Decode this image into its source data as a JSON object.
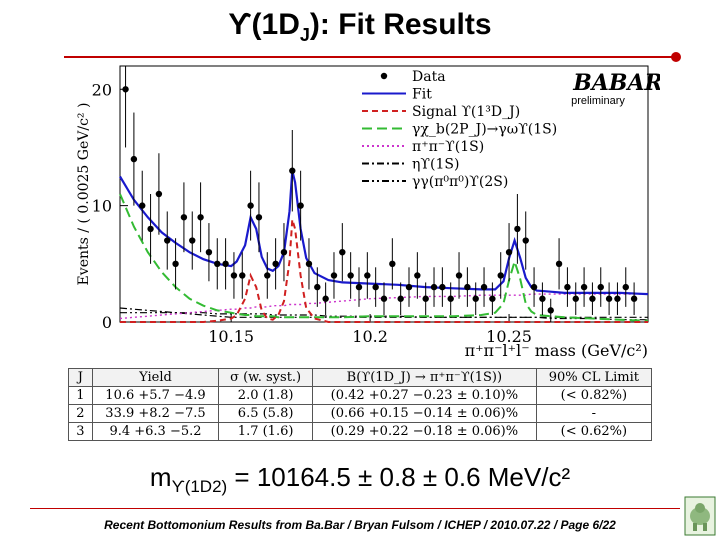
{
  "title": {
    "pre": "ϒ(1D",
    "sub": "J",
    "post": "): Fit Results"
  },
  "chart_data": {
    "type": "scatter",
    "xlabel": "π⁺π⁻l⁺l⁻ mass (GeV/c²)",
    "ylabel": "Events / ( 0.0025 GeV/c² )",
    "xlim": [
      10.11,
      10.3
    ],
    "ylim": [
      0,
      22
    ],
    "xticks": [
      "10.15",
      "10.2",
      "10.25"
    ],
    "yticks": [
      "0",
      "10",
      "20"
    ],
    "brand": "BABAR",
    "brand_note": "preliminary",
    "legend_position": "top-right",
    "legend": [
      {
        "label": "Data",
        "color": "#000000",
        "style": "dot"
      },
      {
        "label": "Fit",
        "color": "#1a1acc",
        "style": "solid"
      },
      {
        "label": "Signal ϒ(1³D_J)",
        "color": "#d02020",
        "style": "dashed"
      },
      {
        "label": "γχ_b(2P_J)→γωϒ(1S)",
        "color": "#33bb33",
        "style": "longdash"
      },
      {
        "label": "π⁺π⁻ϒ(1S)",
        "color": "#cc33cc",
        "style": "dotted"
      },
      {
        "label": "ηϒ(1S)",
        "color": "#000000",
        "style": "dashdot"
      },
      {
        "label": "γγ(π⁰π⁰)ϒ(2S)",
        "color": "#000000",
        "style": "dashdotdot"
      }
    ],
    "data_points": {
      "x": [
        10.112,
        10.115,
        10.118,
        10.121,
        10.124,
        10.127,
        10.13,
        10.133,
        10.136,
        10.139,
        10.142,
        10.145,
        10.148,
        10.151,
        10.154,
        10.157,
        10.16,
        10.163,
        10.166,
        10.169,
        10.172,
        10.175,
        10.178,
        10.181,
        10.184,
        10.187,
        10.19,
        10.193,
        10.196,
        10.199,
        10.202,
        10.205,
        10.208,
        10.211,
        10.214,
        10.217,
        10.22,
        10.223,
        10.226,
        10.229,
        10.232,
        10.235,
        10.238,
        10.241,
        10.244,
        10.247,
        10.25,
        10.253,
        10.256,
        10.259,
        10.262,
        10.265,
        10.268,
        10.271,
        10.274,
        10.277,
        10.28,
        10.283,
        10.286,
        10.289,
        10.292,
        10.295
      ],
      "y": [
        20,
        14,
        10,
        8,
        11,
        7,
        5,
        9,
        7,
        9,
        6,
        5,
        5,
        4,
        4,
        10,
        9,
        4,
        5,
        6,
        13,
        10,
        5,
        3,
        2,
        4,
        6,
        4,
        3,
        4,
        3,
        2,
        5,
        2,
        3,
        4,
        2,
        3,
        3,
        2,
        4,
        3,
        2,
        3,
        2,
        4,
        6,
        8,
        7,
        3,
        2,
        1,
        5,
        3,
        2,
        3,
        2,
        3,
        2,
        2,
        3,
        2
      ],
      "errors": [
        5,
        4,
        3,
        3,
        3.5,
        2.5,
        2.2,
        3,
        2.5,
        3,
        2.5,
        2.2,
        2.2,
        2,
        2,
        3,
        3,
        2,
        2.2,
        2.5,
        3.5,
        3,
        2.2,
        1.7,
        1.4,
        2,
        2.5,
        2,
        1.7,
        2,
        1.7,
        1.4,
        2.2,
        1.4,
        1.7,
        2,
        1.4,
        1.7,
        1.7,
        1.4,
        2,
        1.7,
        1.4,
        1.7,
        1.4,
        2,
        2.5,
        3,
        2.5,
        1.7,
        1.4,
        1,
        2.2,
        1.7,
        1.4,
        1.7,
        1.4,
        1.7,
        1.4,
        1.4,
        1.7,
        1.4
      ]
    },
    "curves": {
      "x": [
        10.11,
        10.115,
        10.12,
        10.125,
        10.13,
        10.135,
        10.14,
        10.145,
        10.15,
        10.152,
        10.155,
        10.157,
        10.159,
        10.161,
        10.163,
        10.165,
        10.167,
        10.169,
        10.171,
        10.172,
        10.173,
        10.175,
        10.177,
        10.18,
        10.185,
        10.19,
        10.2,
        10.21,
        10.22,
        10.23,
        10.24,
        10.245,
        10.248,
        10.25,
        10.252,
        10.254,
        10.256,
        10.258,
        10.26,
        10.265,
        10.27,
        10.28,
        10.29,
        10.3
      ],
      "fit": [
        12.5,
        10.5,
        9.0,
        7.7,
        6.8,
        6.0,
        5.4,
        5.0,
        4.8,
        5.2,
        6.6,
        9.0,
        8.0,
        5.6,
        4.6,
        4.4,
        4.8,
        6.0,
        9.5,
        13.0,
        12.0,
        8.0,
        5.5,
        4.2,
        3.6,
        3.4,
        3.3,
        3.2,
        3.0,
        2.9,
        2.8,
        2.8,
        3.5,
        5.5,
        7.0,
        5.5,
        3.8,
        3.0,
        2.7,
        2.6,
        2.5,
        2.5,
        2.5,
        2.4
      ],
      "signal": [
        0,
        0,
        0,
        0,
        0,
        0,
        0,
        0.1,
        0.3,
        0.6,
        2.0,
        4.0,
        3.0,
        1.0,
        0.3,
        0.2,
        0.6,
        1.8,
        5.2,
        8.8,
        8.0,
        4.0,
        1.2,
        0.3,
        0,
        0,
        0,
        0,
        0,
        0,
        0,
        0,
        0,
        0,
        0,
        0,
        0,
        0,
        0,
        0,
        0,
        0,
        0,
        0
      ],
      "chib": [
        11.0,
        8.2,
        6.0,
        4.3,
        3.0,
        2.0,
        1.4,
        1.0,
        0.8,
        0.7,
        0.6,
        0.6,
        0.5,
        0.5,
        0.5,
        0.5,
        0.4,
        0.4,
        0.4,
        0.4,
        0.4,
        0.4,
        0.4,
        0.4,
        0.4,
        0.4,
        0.5,
        0.5,
        0.5,
        0.5,
        0.6,
        0.8,
        1.6,
        3.6,
        5.2,
        3.7,
        1.6,
        0.9,
        0.6,
        0.5,
        0.4,
        0.3,
        0.2,
        0.1
      ],
      "pipi1s": [
        0.3,
        0.4,
        0.5,
        0.6,
        0.7,
        0.8,
        0.9,
        1.0,
        1.1,
        1.1,
        1.2,
        1.2,
        1.3,
        1.3,
        1.3,
        1.4,
        1.4,
        1.4,
        1.5,
        1.5,
        1.5,
        1.5,
        1.6,
        1.6,
        1.7,
        1.8,
        2.0,
        2.1,
        2.2,
        2.2,
        2.3,
        2.3,
        2.3,
        2.3,
        2.3,
        2.3,
        2.3,
        2.4,
        2.4,
        2.4,
        2.4,
        2.4,
        2.4,
        2.4
      ],
      "eta1s": [
        1.2,
        1.1,
        1.0,
        0.9,
        0.8,
        0.7,
        0.6,
        0.5,
        0.4,
        0.4,
        0.4,
        0.4,
        0.4,
        0.4,
        0.4,
        0.4,
        0.4,
        0.4,
        0.4,
        0.4,
        0.4,
        0.4,
        0.4,
        0.4,
        0.4,
        0.4,
        0.4,
        0.4,
        0.4,
        0.4,
        0.4,
        0.4,
        0.4,
        0.4,
        0.4,
        0.4,
        0.4,
        0.4,
        0.4,
        0.4,
        0.4,
        0.4,
        0.4,
        0.4
      ],
      "gg2s": [
        0.8,
        0.8,
        0.8,
        0.8,
        0.8,
        0.8,
        0.8,
        0.7,
        0.7,
        0.7,
        0.7,
        0.7,
        0.7,
        0.7,
        0.7,
        0.6,
        0.6,
        0.6,
        0.6,
        0.6,
        0.6,
        0.6,
        0.6,
        0.6,
        0.5,
        0.5,
        0.5,
        0.5,
        0.4,
        0.4,
        0.4,
        0.4,
        0.4,
        0.4,
        0.4,
        0.4,
        0.4,
        0.4,
        0.4,
        0.3,
        0.3,
        0.3,
        0.2,
        0.2
      ]
    }
  },
  "table": {
    "headers": [
      "J",
      "Yield",
      "σ (w. syst.)",
      "B(ϒ(1D_J) → π⁺π⁻ϒ(1S))",
      "90% CL Limit"
    ],
    "rows": [
      [
        "1",
        "10.6 +5.7 −4.9",
        "2.0 (1.8)",
        "(0.42 +0.27 −0.23 ± 0.10)%",
        "(< 0.82%)"
      ],
      [
        "2",
        "33.9 +8.2 −7.5",
        "6.5 (5.8)",
        "(0.66 +0.15 −0.14 ± 0.06)%",
        "-"
      ],
      [
        "3",
        "9.4 +6.3 −5.2",
        "1.7 (1.6)",
        "(0.29 +0.22 −0.18 ± 0.06)%",
        "(< 0.62%)"
      ]
    ]
  },
  "formula": {
    "pre": "m",
    "sub": "ϒ(1D2)",
    "post": " = 10164.5 ± 0.8 ± 0.6 MeV/c²"
  },
  "footer": "Recent Bottomonium Results from Ba.Bar / Bryan Fulsom / ICHEP / 2010.07.22 / Page 6/22"
}
